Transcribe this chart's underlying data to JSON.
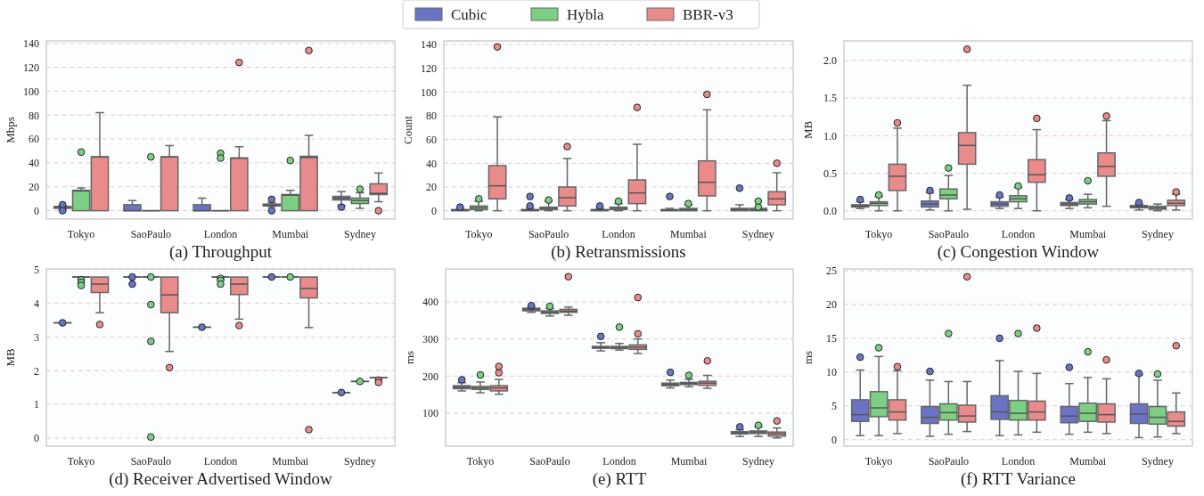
{
  "chart_data": [
    {
      "type": "box",
      "title": "(a) Throughput",
      "ylabel": "Mbps",
      "categories": [
        "Tokyo",
        "SaoPaulo",
        "London",
        "Mumbai",
        "Sydney"
      ],
      "ylim": [
        -7,
        142
      ],
      "yticks": [
        0,
        20,
        40,
        60,
        80,
        100,
        120,
        140
      ],
      "grid": "y",
      "legend": "top",
      "series": [
        {
          "name": "Cubic",
          "color": "#6b74c4",
          "boxes": [
            {
              "low": 1,
              "q1": 2,
              "median": 3,
              "q3": 3.5,
              "high": 4,
              "outliers": [
                5,
                0
              ]
            },
            {
              "low": 0,
              "q1": 0,
              "median": 0,
              "q3": 5,
              "high": 8.5
            },
            {
              "low": 0,
              "q1": 0,
              "median": 0,
              "q3": 5,
              "high": 10.5
            },
            {
              "low": 3.5,
              "q1": 4,
              "median": 4.5,
              "q3": 5.5,
              "high": 6.5,
              "outliers": [
                9.5,
                0
              ]
            },
            {
              "low": 4.5,
              "q1": 9,
              "median": 10.5,
              "q3": 12,
              "high": 16,
              "outliers": [
                3
              ]
            }
          ]
        },
        {
          "name": "Hybla",
          "color": "#7ccf83",
          "boxes": [
            {
              "low": 0,
              "q1": 0,
              "median": 16.5,
              "q3": 17,
              "high": 19,
              "outliers": [
                49
              ]
            },
            {
              "low": 0,
              "q1": 0,
              "median": 0,
              "q3": 0,
              "high": 0,
              "outliers": [
                45
              ]
            },
            {
              "low": 0,
              "q1": 0,
              "median": 0,
              "q3": 0,
              "high": 0,
              "outliers": [
                48,
                44
              ]
            },
            {
              "low": 0,
              "q1": 0,
              "median": 13,
              "q3": 13.5,
              "high": 17,
              "outliers": [
                42
              ]
            },
            {
              "low": 2,
              "q1": 6,
              "median": 8.5,
              "q3": 10.5,
              "high": 15,
              "outliers": [
                18
              ]
            }
          ]
        },
        {
          "name": "BBR-v3",
          "color": "#e98b8b",
          "boxes": [
            {
              "low": 0,
              "q1": 0,
              "median": 45,
              "q3": 45,
              "high": 82
            },
            {
              "low": 0,
              "q1": 0,
              "median": 45,
              "q3": 45,
              "high": 54.5
            },
            {
              "low": 0,
              "q1": 0,
              "median": 44,
              "q3": 44,
              "high": 53.5,
              "outliers": [
                124
              ]
            },
            {
              "low": 0,
              "q1": 0,
              "median": 44.5,
              "q3": 45.5,
              "high": 63,
              "outliers": [
                134
              ]
            },
            {
              "low": 7.5,
              "q1": 13.5,
              "median": 14.5,
              "q3": 22.5,
              "high": 31.5,
              "outliers": [
                0
              ]
            }
          ]
        }
      ]
    },
    {
      "type": "box",
      "title": "(b) Retransmissions",
      "ylabel": "Count",
      "categories": [
        "Tokyo",
        "SaoPaulo",
        "London",
        "Mumbai",
        "Sydney"
      ],
      "ylim": [
        -7,
        143
      ],
      "yticks": [
        0,
        20,
        40,
        60,
        80,
        100,
        120,
        140
      ],
      "grid": "y",
      "series": [
        {
          "color": "#6b74c4",
          "boxes": [
            {
              "low": 0,
              "q1": 0,
              "median": 0.5,
              "q3": 1,
              "high": 2,
              "outliers": [
                3
              ]
            },
            {
              "low": 0,
              "q1": 0,
              "median": 0.5,
              "q3": 1,
              "high": 2,
              "outliers": [
                12,
                4
              ]
            },
            {
              "low": 0,
              "q1": 0,
              "median": 0.5,
              "q3": 1,
              "high": 2,
              "outliers": [
                4
              ]
            },
            {
              "low": 0,
              "q1": 0,
              "median": 0.5,
              "q3": 1,
              "high": 2,
              "outliers": [
                12
              ]
            },
            {
              "low": 0,
              "q1": 0,
              "median": 1,
              "q3": 2,
              "high": 5,
              "outliers": [
                19
              ]
            }
          ]
        },
        {
          "color": "#7ccf83",
          "boxes": [
            {
              "low": 0,
              "q1": 1,
              "median": 2.5,
              "q3": 4,
              "high": 8,
              "outliers": [
                10
              ]
            },
            {
              "low": 0,
              "q1": 1,
              "median": 2,
              "q3": 3,
              "high": 8,
              "outliers": [
                9
              ]
            },
            {
              "low": 0,
              "q1": 1,
              "median": 2,
              "q3": 3,
              "high": 6,
              "outliers": [
                8
              ]
            },
            {
              "low": 0,
              "q1": 0,
              "median": 1,
              "q3": 2,
              "high": 5,
              "outliers": [
                6
              ]
            },
            {
              "low": 0,
              "q1": 0,
              "median": 1,
              "q3": 2,
              "high": 2,
              "outliers": [
                8,
                3
              ]
            }
          ]
        },
        {
          "color": "#e98b8b",
          "boxes": [
            {
              "low": 0,
              "q1": 10,
              "median": 21,
              "q3": 38,
              "high": 79,
              "outliers": [
                138
              ]
            },
            {
              "low": 0,
              "q1": 4,
              "median": 11,
              "q3": 20,
              "high": 44,
              "outliers": [
                54
              ]
            },
            {
              "low": 0,
              "q1": 6,
              "median": 15,
              "q3": 26,
              "high": 56,
              "outliers": [
                87
              ]
            },
            {
              "low": 0,
              "q1": 12.5,
              "median": 24,
              "q3": 42,
              "high": 85,
              "outliers": [
                98
              ]
            },
            {
              "low": 0,
              "q1": 5,
              "median": 10,
              "q3": 16,
              "high": 32,
              "outliers": [
                40
              ]
            }
          ]
        }
      ]
    },
    {
      "type": "box",
      "title": "(c) Congestion Window",
      "ylabel": "MB",
      "categories": [
        "Tokyo",
        "SaoPaulo",
        "London",
        "Mumbai",
        "Sydney"
      ],
      "ylim": [
        -0.11,
        2.26
      ],
      "yticks": [
        {
          "value": 0,
          "label": "0.0"
        },
        {
          "value": 0.5,
          "label": "0.5"
        },
        {
          "value": 1,
          "label": "1.0"
        },
        {
          "value": 1.5,
          "label": "1.5"
        },
        {
          "value": 2,
          "label": "2.0"
        }
      ],
      "grid": "y",
      "series": [
        {
          "color": "#6b74c4",
          "boxes": [
            {
              "low": 0.03,
              "q1": 0.05,
              "median": 0.065,
              "q3": 0.08,
              "high": 0.12,
              "outliers": [
                0.15
              ]
            },
            {
              "low": 0.01,
              "q1": 0.05,
              "median": 0.09,
              "q3": 0.13,
              "high": 0.24,
              "outliers": [
                0.27
              ]
            },
            {
              "low": 0.03,
              "q1": 0.06,
              "median": 0.09,
              "q3": 0.12,
              "high": 0.18,
              "outliers": [
                0.21
              ]
            },
            {
              "low": 0.03,
              "q1": 0.07,
              "median": 0.09,
              "q3": 0.11,
              "high": 0.15,
              "outliers": [
                0.17
              ]
            },
            {
              "low": 0.01,
              "q1": 0.04,
              "median": 0.055,
              "q3": 0.07,
              "high": 0.09,
              "outliers": [
                0.11
              ]
            }
          ]
        },
        {
          "color": "#7ccf83",
          "boxes": [
            {
              "low": 0,
              "q1": 0.07,
              "median": 0.1,
              "q3": 0.12,
              "high": 0.19,
              "outliers": [
                0.21
              ]
            },
            {
              "low": 0,
              "q1": 0.16,
              "median": 0.21,
              "q3": 0.29,
              "high": 0.47,
              "outliers": [
                0.57
              ]
            },
            {
              "low": 0.03,
              "q1": 0.12,
              "median": 0.16,
              "q3": 0.2,
              "high": 0.31,
              "outliers": [
                0.33
              ]
            },
            {
              "low": 0.04,
              "q1": 0.09,
              "median": 0.12,
              "q3": 0.15,
              "high": 0.22,
              "outliers": [
                0.4
              ]
            },
            {
              "low": 0,
              "q1": 0.02,
              "median": 0.04,
              "q3": 0.06,
              "high": 0.09
            }
          ]
        },
        {
          "color": "#e98b8b",
          "boxes": [
            {
              "low": 0,
              "q1": 0.27,
              "median": 0.46,
              "q3": 0.62,
              "high": 1.1,
              "outliers": [
                1.17
              ]
            },
            {
              "low": 0.02,
              "q1": 0.62,
              "median": 0.87,
              "q3": 1.04,
              "high": 1.67,
              "outliers": [
                2.15
              ]
            },
            {
              "low": 0,
              "q1": 0.38,
              "median": 0.48,
              "q3": 0.68,
              "high": 1.08,
              "outliers": [
                1.23
              ]
            },
            {
              "low": 0.06,
              "q1": 0.46,
              "median": 0.59,
              "q3": 0.77,
              "high": 1.2,
              "outliers": [
                1.26
              ]
            },
            {
              "low": 0.01,
              "q1": 0.07,
              "median": 0.1,
              "q3": 0.14,
              "high": 0.22,
              "outliers": [
                0.25
              ]
            }
          ]
        }
      ]
    },
    {
      "type": "box",
      "title": "(d) Receiver Advertised Window",
      "ylabel": "MB",
      "categories": [
        "Tokyo",
        "SaoPaulo",
        "London",
        "Mumbai",
        "Sydney"
      ],
      "ylim": [
        -0.24,
        5.02
      ],
      "yticks": [
        0,
        1,
        2,
        3,
        4,
        5
      ],
      "grid": "y",
      "series": [
        {
          "color": "#6b74c4",
          "boxes": [
            {
              "low": 3.42,
              "q1": 3.42,
              "median": 3.42,
              "q3": 3.42,
              "high": 3.42,
              "outliers": [
                3.42
              ]
            },
            {
              "low": 4.78,
              "q1": 4.78,
              "median": 4.78,
              "q3": 4.78,
              "high": 4.78,
              "outliers": [
                4.78,
                4.57
              ]
            },
            {
              "low": 3.29,
              "q1": 3.29,
              "median": 3.29,
              "q3": 3.29,
              "high": 3.29,
              "outliers": [
                3.29
              ]
            },
            {
              "low": 4.78,
              "q1": 4.78,
              "median": 4.78,
              "q3": 4.78,
              "high": 4.78,
              "outliers": [
                4.78
              ]
            },
            {
              "low": 1.35,
              "q1": 1.35,
              "median": 1.35,
              "q3": 1.35,
              "high": 1.35,
              "outliers": [
                1.35
              ]
            }
          ]
        },
        {
          "color": "#7ccf83",
          "boxes": [
            {
              "low": 4.78,
              "q1": 4.78,
              "median": 4.78,
              "q3": 4.78,
              "high": 4.78,
              "outliers": [
                4.7,
                4.62,
                4.53
              ]
            },
            {
              "low": 4.78,
              "q1": 4.78,
              "median": 4.78,
              "q3": 4.78,
              "high": 4.78,
              "outliers": [
                4.78,
                3.96,
                2.87,
                0.03
              ]
            },
            {
              "low": 4.78,
              "q1": 4.78,
              "median": 4.78,
              "q3": 4.78,
              "high": 4.78,
              "outliers": [
                4.74,
                4.68,
                4.57
              ]
            },
            {
              "low": 4.78,
              "q1": 4.78,
              "median": 4.78,
              "q3": 4.78,
              "high": 4.78,
              "outliers": [
                4.78
              ]
            },
            {
              "low": 1.68,
              "q1": 1.68,
              "median": 1.68,
              "q3": 1.68,
              "high": 1.68,
              "outliers": [
                1.68
              ]
            }
          ]
        },
        {
          "color": "#e98b8b",
          "boxes": [
            {
              "low": 3.72,
              "q1": 4.32,
              "median": 4.57,
              "q3": 4.78,
              "high": 4.78,
              "outliers": [
                3.37
              ]
            },
            {
              "low": 2.57,
              "q1": 3.72,
              "median": 4.25,
              "q3": 4.78,
              "high": 4.78,
              "outliers": [
                2.09
              ]
            },
            {
              "low": 3.53,
              "q1": 4.26,
              "median": 4.57,
              "q3": 4.78,
              "high": 4.78,
              "outliers": [
                3.34
              ]
            },
            {
              "low": 3.28,
              "q1": 4.16,
              "median": 4.44,
              "q3": 4.78,
              "high": 4.78,
              "outliers": [
                0.25
              ]
            },
            {
              "low": 1.79,
              "q1": 1.79,
              "median": 1.79,
              "q3": 1.79,
              "high": 1.79,
              "outliers": [
                1.72,
                1.65
              ]
            }
          ]
        }
      ]
    },
    {
      "type": "box",
      "title": "(e) RTT",
      "ylabel": "ms",
      "categories": [
        "Tokyo",
        "SaoPaulo",
        "London",
        "Mumbai",
        "Sydney"
      ],
      "ylim": [
        11,
        489
      ],
      "yticks": [
        100,
        200,
        300,
        400
      ],
      "grid": "y",
      "series": [
        {
          "color": "#6b74c4",
          "boxes": [
            {
              "low": 160,
              "q1": 166,
              "median": 170,
              "q3": 174,
              "high": 182,
              "outliers": [
                190
              ]
            },
            {
              "low": 372,
              "q1": 376,
              "median": 380,
              "q3": 383,
              "high": 386,
              "outliers": [
                390
              ]
            },
            {
              "low": 268,
              "q1": 275,
              "median": 277,
              "q3": 280,
              "high": 290,
              "outliers": [
                307
              ]
            },
            {
              "low": 168,
              "q1": 174,
              "median": 177,
              "q3": 181,
              "high": 189,
              "outliers": [
                210
              ]
            },
            {
              "low": 37,
              "q1": 44,
              "median": 47,
              "q3": 50,
              "high": 55,
              "outliers": [
                63
              ]
            }
          ]
        },
        {
          "color": "#7ccf83",
          "boxes": [
            {
              "low": 155,
              "q1": 164,
              "median": 168,
              "q3": 172,
              "high": 184,
              "outliers": [
                203
              ]
            },
            {
              "low": 362,
              "q1": 369,
              "median": 372,
              "q3": 376,
              "high": 382,
              "outliers": [
                388
              ]
            },
            {
              "low": 270,
              "q1": 274,
              "median": 277,
              "q3": 280,
              "high": 288,
              "outliers": [
                332
              ]
            },
            {
              "low": 171,
              "q1": 177,
              "median": 180,
              "q3": 183,
              "high": 191,
              "outliers": [
                202
              ]
            },
            {
              "low": 37,
              "q1": 45,
              "median": 49,
              "q3": 52,
              "high": 63,
              "outliers": [
                67
              ]
            }
          ]
        },
        {
          "color": "#e98b8b",
          "boxes": [
            {
              "low": 151,
              "q1": 160,
              "median": 168,
              "q3": 174,
              "high": 191,
              "outliers": [
                209,
                226
              ]
            },
            {
              "low": 364,
              "q1": 372,
              "median": 375,
              "q3": 380,
              "high": 386,
              "outliers": [
                468
              ]
            },
            {
              "low": 261,
              "q1": 272,
              "median": 278,
              "q3": 284,
              "high": 300,
              "outliers": [
                314,
                412
              ]
            },
            {
              "low": 167,
              "q1": 175,
              "median": 181,
              "q3": 186,
              "high": 202,
              "outliers": [
                241
              ]
            },
            {
              "low": 33,
              "q1": 38,
              "median": 44,
              "q3": 49,
              "high": 60,
              "outliers": [
                79
              ]
            }
          ]
        }
      ]
    },
    {
      "type": "box",
      "title": "(f) RTT Variance",
      "ylabel": "ms",
      "categories": [
        "Tokyo",
        "SaoPaulo",
        "London",
        "Mumbai",
        "Sydney"
      ],
      "ylim": [
        -0.96,
        25.26
      ],
      "yticks": [
        0,
        5,
        10,
        15,
        20,
        25
      ],
      "grid": "y",
      "series": [
        {
          "color": "#6b74c4",
          "boxes": [
            {
              "low": 0.6,
              "q1": 2.7,
              "median": 3.7,
              "q3": 5.9,
              "high": 10.3,
              "outliers": [
                12.2
              ]
            },
            {
              "low": 0.5,
              "q1": 2.4,
              "median": 3.3,
              "q3": 4.9,
              "high": 8.8,
              "outliers": [
                10.1
              ]
            },
            {
              "low": 0.6,
              "q1": 3,
              "median": 4.1,
              "q3": 6.5,
              "high": 11.7,
              "outliers": [
                15
              ]
            },
            {
              "low": 0.8,
              "q1": 2.5,
              "median": 3.5,
              "q3": 4.9,
              "high": 8.3,
              "outliers": [
                10.7
              ]
            },
            {
              "low": 0.3,
              "q1": 2.4,
              "median": 3.8,
              "q3": 5.3,
              "high": 9.6,
              "outliers": [
                9.8
              ]
            }
          ]
        },
        {
          "color": "#7ccf83",
          "boxes": [
            {
              "low": 0.6,
              "q1": 3.4,
              "median": 4.7,
              "q3": 7.1,
              "high": 12.3,
              "outliers": [
                13.6
              ]
            },
            {
              "low": 0.8,
              "q1": 2.9,
              "median": 4,
              "q3": 5.3,
              "high": 8.6,
              "outliers": [
                15.7
              ]
            },
            {
              "low": 0.7,
              "q1": 2.9,
              "median": 3.9,
              "q3": 5.8,
              "high": 10.1,
              "outliers": [
                15.7
              ]
            },
            {
              "low": 1.1,
              "q1": 2.7,
              "median": 3.9,
              "q3": 5.4,
              "high": 9.2,
              "outliers": [
                13
              ]
            },
            {
              "low": 0.4,
              "q1": 2.3,
              "median": 3.3,
              "q3": 4.9,
              "high": 8.8,
              "outliers": [
                9.7
              ]
            }
          ]
        },
        {
          "color": "#e98b8b",
          "boxes": [
            {
              "low": 0.9,
              "q1": 2.9,
              "median": 4.1,
              "q3": 5.9,
              "high": 10.2,
              "outliers": [
                10.8
              ]
            },
            {
              "low": 1.2,
              "q1": 2.6,
              "median": 3.5,
              "q3": 5.1,
              "high": 8.6,
              "outliers": [
                24.1
              ]
            },
            {
              "low": 1.1,
              "q1": 2.9,
              "median": 4.1,
              "q3": 5.7,
              "high": 9.8,
              "outliers": [
                16.5
              ]
            },
            {
              "low": 0.9,
              "q1": 2.6,
              "median": 3.7,
              "q3": 5.3,
              "high": 9,
              "outliers": [
                11.8
              ]
            },
            {
              "low": 0.9,
              "q1": 2,
              "median": 2.7,
              "q3": 4.1,
              "high": 6.9,
              "outliers": [
                13.9
              ]
            }
          ]
        }
      ]
    }
  ]
}
